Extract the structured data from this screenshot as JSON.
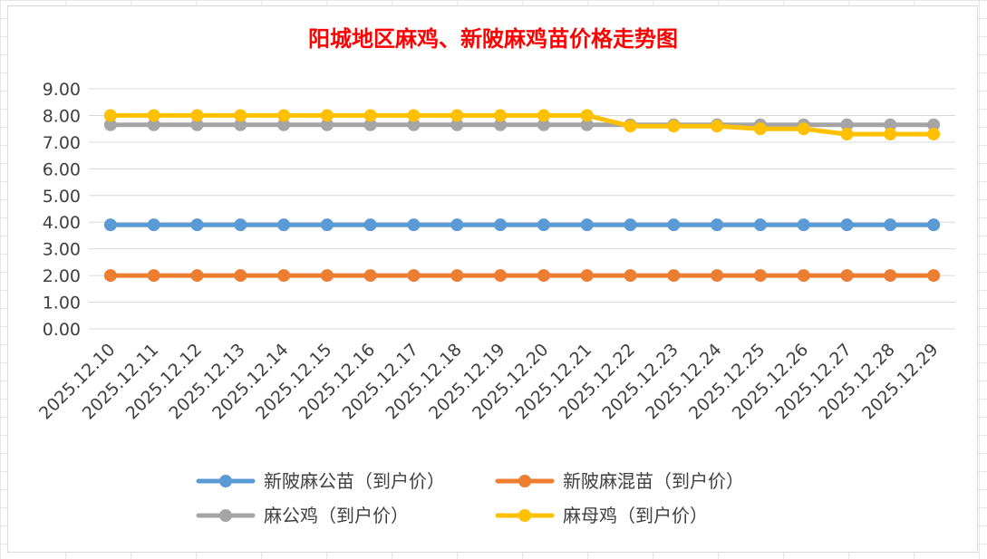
{
  "chart_data": {
    "type": "line",
    "title": "阳城地区麻鸡、新陂麻鸡苗价格走势图",
    "xlabel": "",
    "ylabel": "",
    "ylim": [
      0,
      9
    ],
    "yticks": [
      "0.00",
      "1.00",
      "2.00",
      "3.00",
      "4.00",
      "5.00",
      "6.00",
      "7.00",
      "8.00",
      "9.00"
    ],
    "grid": "horizontal",
    "legend_position": "bottom",
    "categories": [
      "2025.12.10",
      "2025.12.11",
      "2025.12.12",
      "2025.12.13",
      "2025.12.14",
      "2025.12.15",
      "2025.12.16",
      "2025.12.17",
      "2025.12.18",
      "2025.12.19",
      "2025.12.20",
      "2025.12.21",
      "2025.12.22",
      "2025.12.23",
      "2025.12.24",
      "2025.12.25",
      "2025.12.26",
      "2025.12.27",
      "2025.12.28",
      "2025.12.29"
    ],
    "series": [
      {
        "name": "新陂麻公苗（到户价）",
        "color": "#5b9bd5",
        "values": [
          3.9,
          3.9,
          3.9,
          3.9,
          3.9,
          3.9,
          3.9,
          3.9,
          3.9,
          3.9,
          3.9,
          3.9,
          3.9,
          3.9,
          3.9,
          3.9,
          3.9,
          3.9,
          3.9,
          3.9
        ]
      },
      {
        "name": "新陂麻混苗（到户价）",
        "color": "#ed7d31",
        "values": [
          2.0,
          2.0,
          2.0,
          2.0,
          2.0,
          2.0,
          2.0,
          2.0,
          2.0,
          2.0,
          2.0,
          2.0,
          2.0,
          2.0,
          2.0,
          2.0,
          2.0,
          2.0,
          2.0,
          2.0
        ]
      },
      {
        "name": "麻公鸡（到户价）",
        "color": "#a5a5a5",
        "values": [
          7.65,
          7.65,
          7.65,
          7.65,
          7.65,
          7.65,
          7.65,
          7.65,
          7.65,
          7.65,
          7.65,
          7.65,
          7.65,
          7.65,
          7.65,
          7.65,
          7.65,
          7.65,
          7.65,
          7.65
        ]
      },
      {
        "name": "麻母鸡（到户价）",
        "color": "#ffc000",
        "values": [
          8.0,
          8.0,
          8.0,
          8.0,
          8.0,
          8.0,
          8.0,
          8.0,
          8.0,
          8.0,
          8.0,
          8.0,
          7.6,
          7.6,
          7.6,
          7.5,
          7.5,
          7.3,
          7.3,
          7.3
        ]
      }
    ]
  }
}
